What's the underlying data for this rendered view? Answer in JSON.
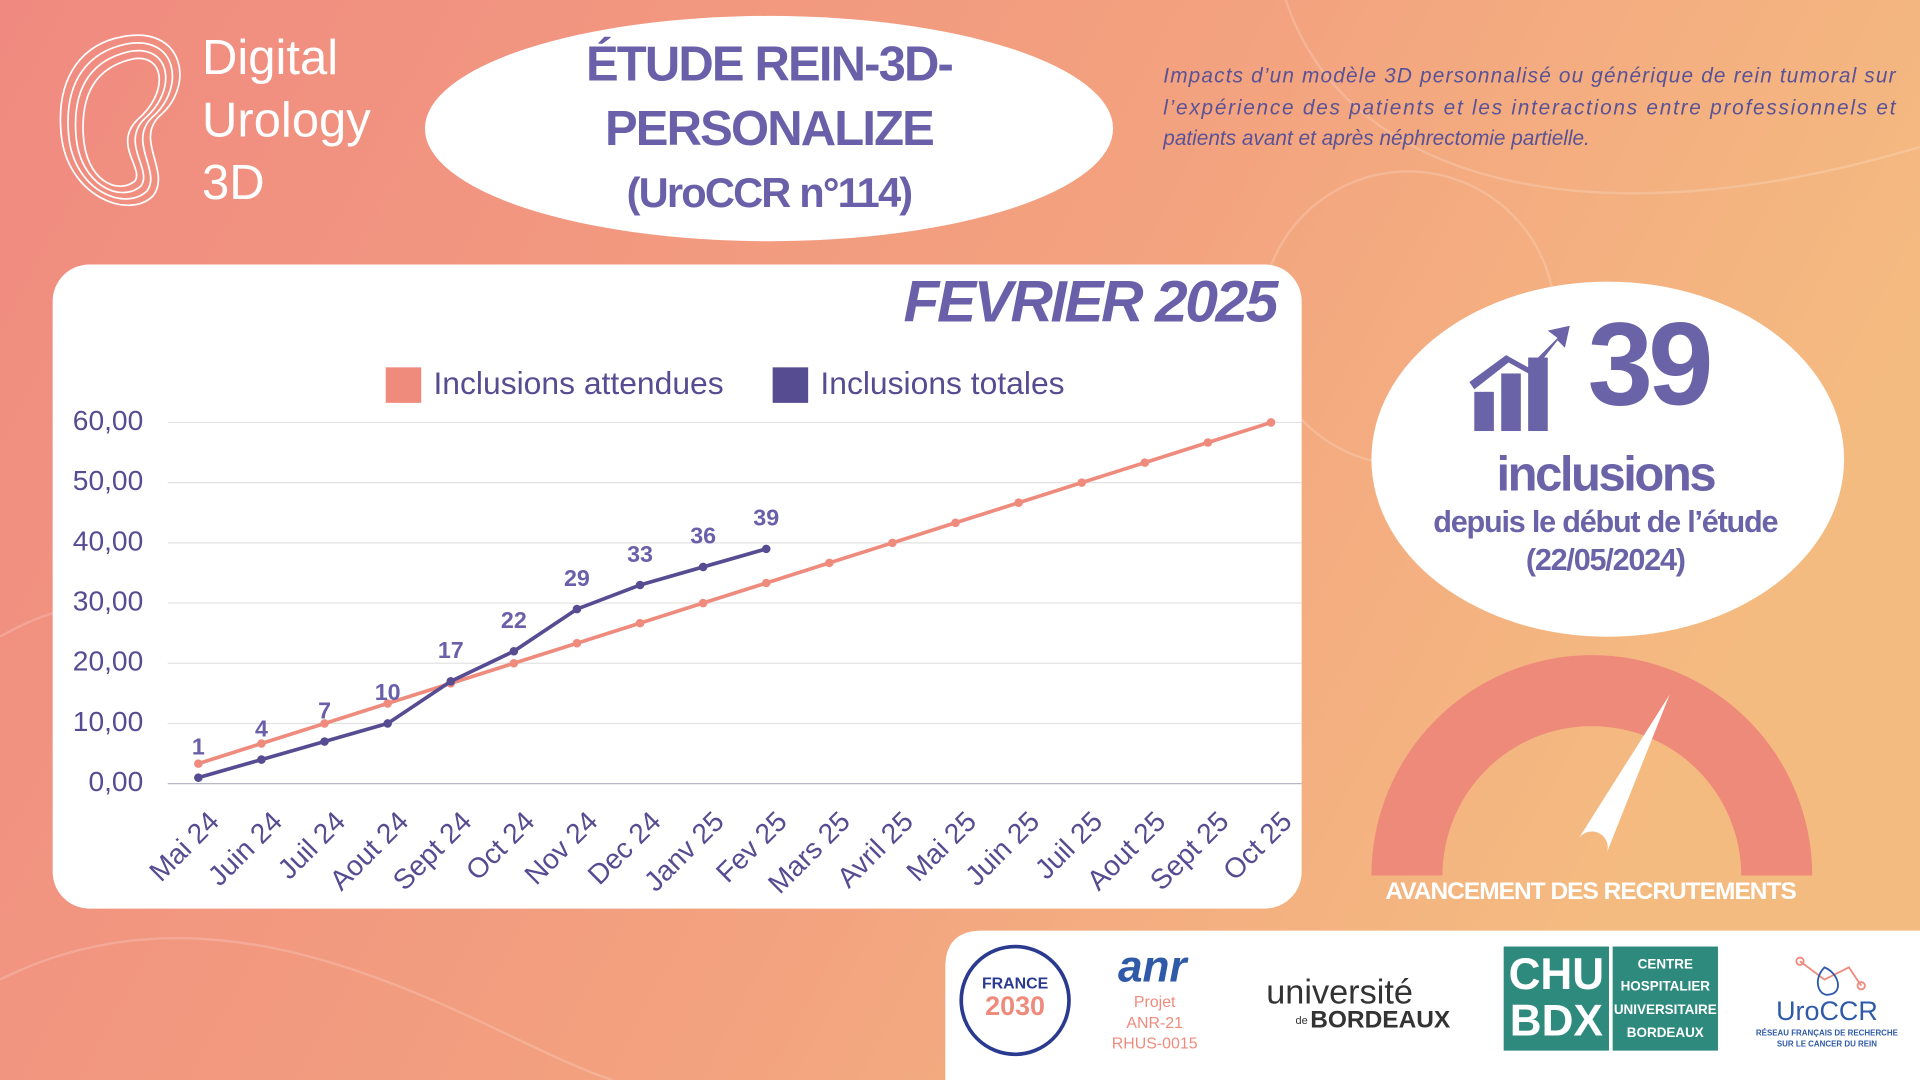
{
  "logo": {
    "lines": [
      "Digital",
      "Urology",
      "3D"
    ]
  },
  "header": {
    "title_lines": [
      "ÉTUDE REIN-3D-",
      "PERSONALIZE",
      "(UroCCR n°114)"
    ],
    "description_lines": [
      "Impacts d’un modèle 3D personnalisé ou générique de rein tumoral sur",
      "l’expérience des patients et les interactions entre professionnels et",
      "patients avant et après néphrectomie partielle."
    ]
  },
  "chart_data": {
    "type": "line",
    "title": "FEVRIER 2025",
    "categories": [
      "Mai 24",
      "Juin 24",
      "Juil 24",
      "Aout 24",
      "Sept 24",
      "Oct 24",
      "Nov 24",
      "Dec 24",
      "Janv 25",
      "Fev 25",
      "Mars 25",
      "Avril 25",
      "Mai 25",
      "Juin 25",
      "Juil 25",
      "Aout 25",
      "Sept 25",
      "Oct 25"
    ],
    "series": [
      {
        "name": "Inclusions attendues",
        "color": "#ef8b7d",
        "values": [
          3.33,
          6.67,
          10,
          13.33,
          16.67,
          20,
          23.33,
          26.67,
          30,
          33.33,
          36.67,
          40,
          43.33,
          46.67,
          50,
          53.33,
          56.67,
          60
        ],
        "show_labels": false
      },
      {
        "name": "Inclusions totales",
        "color": "#564c91",
        "values": [
          1,
          4,
          7,
          10,
          17,
          22,
          29,
          33,
          36,
          39,
          null,
          null,
          null,
          null,
          null,
          null,
          null,
          null
        ],
        "show_labels": true
      }
    ],
    "ylim": [
      0,
      60
    ],
    "yticks": [
      {
        "value": 0,
        "label": "0,00"
      },
      {
        "value": 10,
        "label": "10,00"
      },
      {
        "value": 20,
        "label": "20,00"
      },
      {
        "value": 30,
        "label": "30,00"
      },
      {
        "value": 40,
        "label": "40,00"
      },
      {
        "value": 50,
        "label": "50,00"
      },
      {
        "value": 60,
        "label": "60,00"
      }
    ],
    "grid": true,
    "legend": "top"
  },
  "counter": {
    "value": 39,
    "unit": "inclusions",
    "caption": "depuis le début de l’étude",
    "date": "(22/05/2024)"
  },
  "gauge": {
    "label": "AVANCEMENT DES RECRUTEMENTS",
    "value": 39,
    "lim": [
      0,
      60
    ]
  },
  "logos": {
    "france": [
      "FRANCE",
      "2030"
    ],
    "anr": {
      "name": "anr",
      "lines": [
        "Projet",
        "ANR-21",
        "RHUS-0015"
      ]
    },
    "ubx": {
      "top": "université",
      "de": "de",
      "bottom": "BORDEAUX"
    },
    "chu": {
      "left": [
        "CHU",
        "BDX"
      ],
      "right": [
        "CENTRE",
        "HOSPITALIER",
        "UNIVERSITAIRE",
        "BORDEAUX"
      ]
    },
    "uroccr": {
      "name": "UroCCR",
      "lines": [
        "RÉSEAU FRANÇAIS DE RECHERCHE",
        "SUR LE CANCER DU REIN"
      ]
    }
  }
}
